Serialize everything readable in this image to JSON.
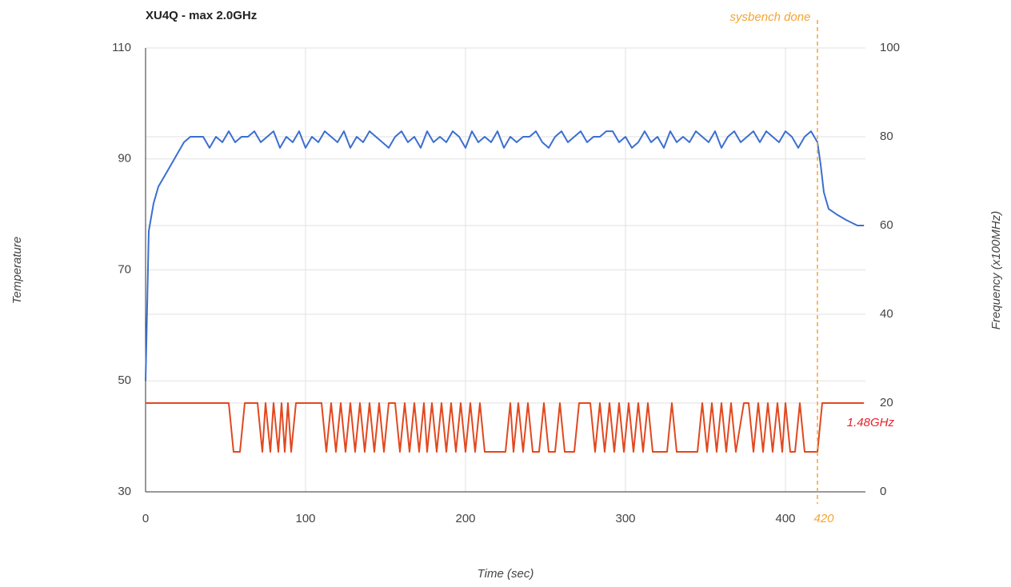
{
  "chart_data": {
    "type": "line",
    "title": "XU4Q - max 2.0GHz",
    "x_label": "Time (sec)",
    "y_label": "Temperature",
    "y2_label": "Frequency (x100MHz)",
    "xlim": [
      0,
      450
    ],
    "xticks": [
      0,
      100,
      200,
      300,
      400
    ],
    "ylim": [
      30,
      110
    ],
    "yticks": [
      30,
      50,
      70,
      90,
      110
    ],
    "y2lim": [
      0,
      100
    ],
    "y2ticks": [
      0,
      20,
      40,
      60,
      80,
      100
    ],
    "grid": true,
    "series": [
      {
        "color": "#3b6fd0",
        "x": [
          0,
          2,
          5,
          8,
          12,
          16,
          20,
          24,
          28,
          32,
          36,
          40,
          44,
          48,
          52,
          56,
          60,
          64,
          68,
          72,
          76,
          80,
          84,
          88,
          92,
          96,
          100,
          104,
          108,
          112,
          116,
          120,
          124,
          128,
          132,
          136,
          140,
          144,
          148,
          152,
          156,
          160,
          164,
          168,
          172,
          176,
          180,
          184,
          188,
          192,
          196,
          200,
          204,
          208,
          212,
          216,
          220,
          224,
          228,
          232,
          236,
          240,
          244,
          248,
          252,
          256,
          260,
          264,
          268,
          272,
          276,
          280,
          284,
          288,
          292,
          296,
          300,
          304,
          308,
          312,
          316,
          320,
          324,
          328,
          332,
          336,
          340,
          344,
          348,
          352,
          356,
          360,
          364,
          368,
          372,
          376,
          380,
          384,
          388,
          392,
          396,
          400,
          404,
          408,
          412,
          416,
          420,
          422,
          424,
          427,
          432,
          438,
          445,
          449
        ],
        "values": [
          50,
          77,
          82,
          85,
          87,
          89,
          91,
          93,
          94,
          94,
          94,
          92,
          94,
          93,
          95,
          93,
          94,
          94,
          95,
          93,
          94,
          95,
          92,
          94,
          93,
          95,
          92,
          94,
          93,
          95,
          94,
          93,
          95,
          92,
          94,
          93,
          95,
          94,
          93,
          92,
          94,
          95,
          93,
          94,
          92,
          95,
          93,
          94,
          93,
          95,
          94,
          92,
          95,
          93,
          94,
          93,
          95,
          92,
          94,
          93,
          94,
          94,
          95,
          93,
          92,
          94,
          95,
          93,
          94,
          95,
          93,
          94,
          94,
          95,
          95,
          93,
          94,
          92,
          93,
          95,
          93,
          94,
          92,
          95,
          93,
          94,
          93,
          95,
          94,
          93,
          95,
          92,
          94,
          95,
          93,
          94,
          95,
          93,
          95,
          94,
          93,
          95,
          94,
          92,
          94,
          95,
          93,
          89,
          84,
          81,
          80,
          79,
          78,
          78
        ]
      },
      {
        "color": "#e2481f",
        "axis": "y2",
        "x": [
          0,
          52,
          55,
          59,
          62,
          70,
          73,
          75,
          78,
          80,
          83,
          85,
          87,
          89,
          91,
          94,
          110,
          113,
          116,
          119,
          122,
          125,
          128,
          131,
          134,
          137,
          140,
          143,
          146,
          149,
          152,
          156,
          159,
          162,
          165,
          168,
          171,
          174,
          176,
          179,
          182,
          185,
          188,
          191,
          194,
          197,
          200,
          203,
          206,
          209,
          212,
          225,
          228,
          230,
          233,
          236,
          239,
          242,
          246,
          249,
          252,
          256,
          259,
          262,
          268,
          271,
          278,
          281,
          284,
          287,
          290,
          293,
          296,
          299,
          302,
          305,
          308,
          311,
          314,
          317,
          326,
          329,
          332,
          345,
          348,
          351,
          354,
          357,
          360,
          363,
          366,
          369,
          374,
          377,
          380,
          383,
          386,
          389,
          392,
          395,
          398,
          400,
          403,
          406,
          409,
          412,
          420,
          423,
          449
        ],
        "values": [
          20,
          20,
          9,
          9,
          20,
          20,
          9,
          20,
          9,
          20,
          9,
          20,
          9,
          20,
          9,
          20,
          20,
          9,
          20,
          9,
          20,
          9,
          20,
          9,
          20,
          9,
          20,
          9,
          20,
          9,
          20,
          20,
          9,
          20,
          9,
          20,
          9,
          20,
          9,
          20,
          9,
          20,
          9,
          20,
          9,
          20,
          9,
          20,
          9,
          20,
          9,
          9,
          20,
          9,
          20,
          9,
          20,
          9,
          9,
          20,
          9,
          9,
          20,
          9,
          9,
          20,
          20,
          9,
          20,
          9,
          20,
          9,
          20,
          9,
          20,
          9,
          20,
          9,
          20,
          9,
          9,
          20,
          9,
          9,
          20,
          9,
          20,
          9,
          20,
          9,
          20,
          9,
          20,
          20,
          9,
          20,
          9,
          20,
          9,
          20,
          9,
          20,
          9,
          9,
          20,
          9,
          9,
          20,
          20
        ]
      }
    ],
    "marker": {
      "x": 420,
      "label": "420",
      "text": "sysbench done",
      "color": "#f5a433"
    },
    "annotation": {
      "text": "1.48GHz",
      "y2": 14.8,
      "color": "#e8202a"
    }
  }
}
